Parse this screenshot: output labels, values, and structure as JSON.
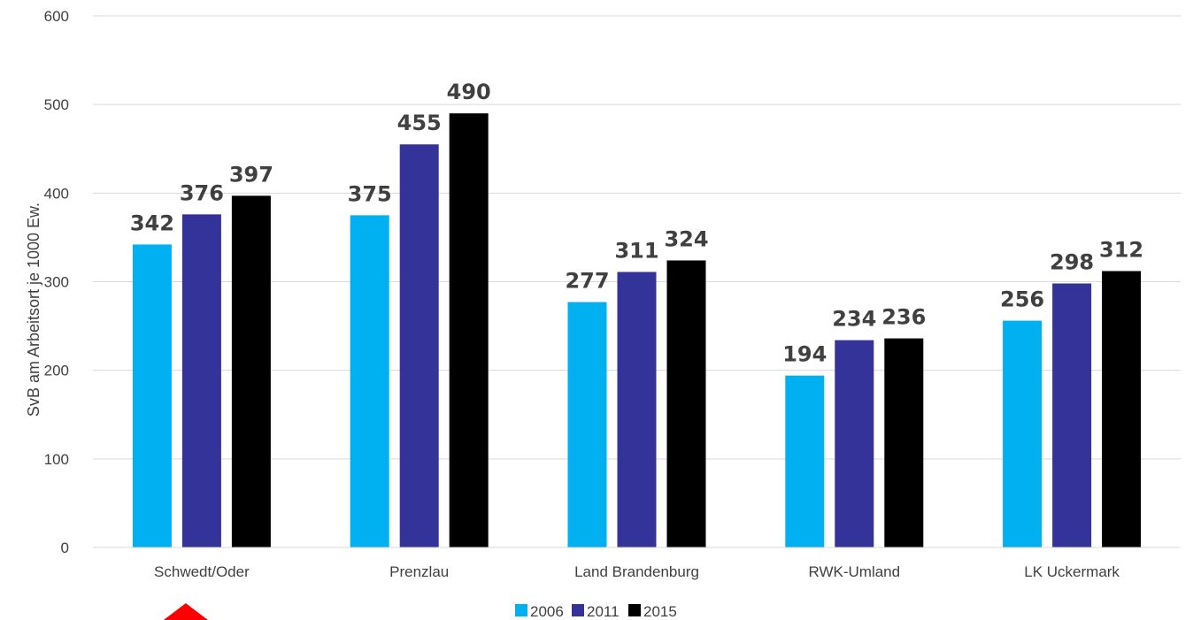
{
  "chart_data": {
    "type": "bar",
    "title": "",
    "xlabel": "",
    "ylabel": "SvB am Arbeitsort je 1000 Ew.",
    "ylim": [
      0,
      600
    ],
    "yticks": [
      0,
      100,
      200,
      300,
      400,
      500,
      600
    ],
    "grid": true,
    "legend_position": "bottom",
    "categories": [
      "Schwedt/Oder",
      "Prenzlau",
      "Land Brandenburg",
      "RWK-Umland",
      "LK Uckermark"
    ],
    "series": [
      {
        "name": "2006",
        "color": "#00B0F0",
        "values": [
          342,
          375,
          277,
          194,
          256
        ]
      },
      {
        "name": "2011",
        "color": "#333399",
        "values": [
          376,
          455,
          311,
          234,
          298
        ]
      },
      {
        "name": "2015",
        "color": "#000000",
        "values": [
          397,
          490,
          324,
          236,
          312
        ]
      }
    ],
    "marker": {
      "shape": "red-triangle-up",
      "color": "#FF0000",
      "category": "Schwedt/Oder"
    }
  }
}
